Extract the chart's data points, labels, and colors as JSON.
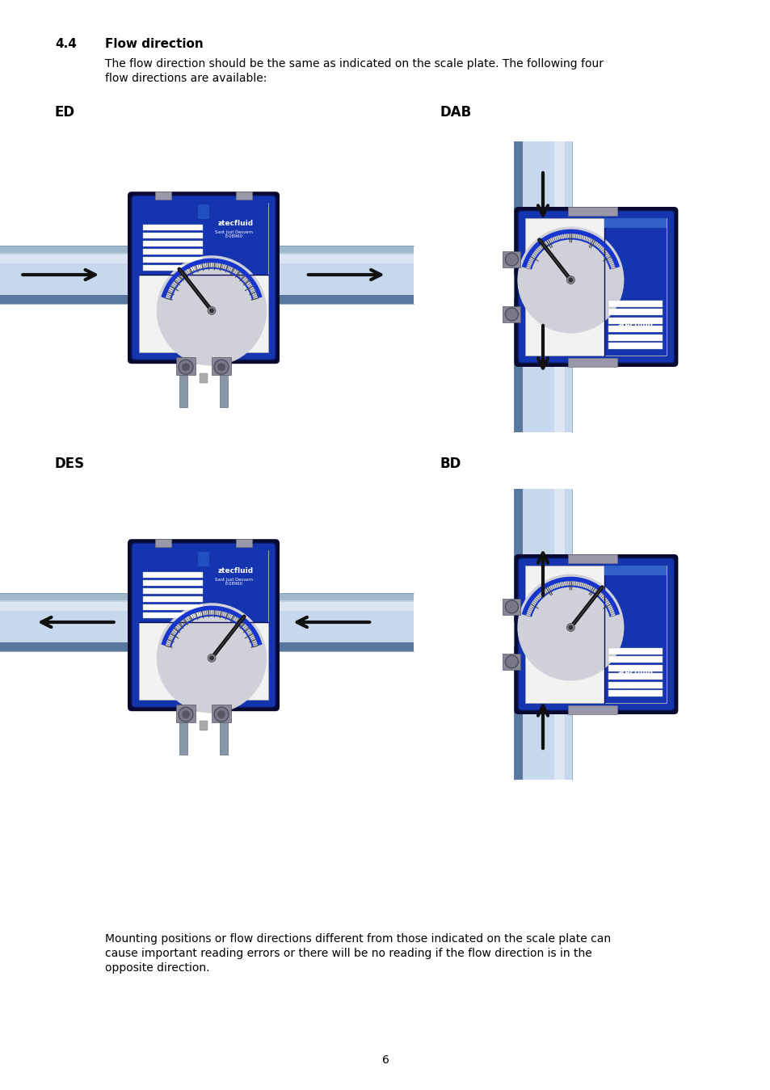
{
  "bg_color": "#ffffff",
  "section_num": "4.4",
  "section_title": "Flow direction",
  "intro_line1": "The flow direction should be the same as indicated on the scale plate. The following four",
  "intro_line2": "flow directions are available:",
  "labels": [
    "ED",
    "DAB",
    "DES",
    "BD"
  ],
  "bottom_line1": "Mounting positions or flow directions different from those indicated on the scale plate can",
  "bottom_line2": "cause important reading errors or there will be no reading if the flow direction is in the",
  "bottom_line3": "opposite direction.",
  "page_number": "6",
  "box_blue": "#1535b0",
  "box_blue_dark": "#0a1f70",
  "box_outline": "#0a0a30",
  "pipe_light": "#c8d8ec",
  "pipe_mid": "#a0b8cc",
  "pipe_dark": "#7090a8",
  "pipe_shadow": "#5878a0",
  "gauge_white": "#f2f2f2",
  "gauge_gray": "#d0d0d8",
  "scale_blue": "#1535cc",
  "needle_col": "#0a0a0a",
  "connector_gray": "#787888",
  "leg_gray": "#8898a8",
  "arrow_col": "#111111",
  "title_fs": 11,
  "body_fs": 10,
  "label_fs": 12,
  "small_fs": 4.5,
  "logo_fs": 6.5,
  "addr_fs": 3.8
}
